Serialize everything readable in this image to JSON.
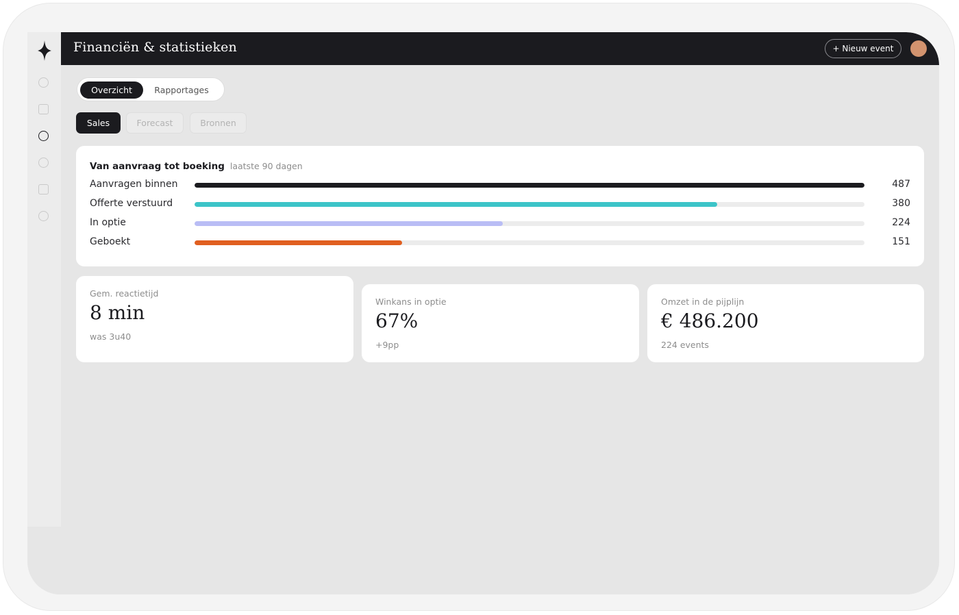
{
  "header": {
    "title": "Financiën & statistieken",
    "new_event_label": "+ Nieuw event"
  },
  "sidebar": {
    "items": [
      {
        "icon": "circle-icon",
        "active": false
      },
      {
        "icon": "square-icon",
        "active": false
      },
      {
        "icon": "circle-icon",
        "active": true
      },
      {
        "icon": "circle-icon",
        "active": false
      },
      {
        "icon": "square-icon",
        "active": false
      },
      {
        "icon": "circle-icon",
        "active": false
      }
    ]
  },
  "tabs": {
    "primary": [
      "Overzicht",
      "Rapportages"
    ],
    "primary_selected": "Overzicht",
    "secondary": [
      "Sales",
      "Forecast",
      "Bronnen"
    ],
    "secondary_selected": "Sales"
  },
  "funnel": {
    "title": "Van aanvraag tot boeking",
    "subtitle": "laatste 90 dagen",
    "rows": [
      {
        "label": "Aanvragen binnen",
        "value": 487,
        "color": "#1b1b1f"
      },
      {
        "label": "Offerte verstuurd",
        "value": 380,
        "color": "#3cc4c8"
      },
      {
        "label": "In optie",
        "value": 224,
        "color": "#b9bdf5"
      },
      {
        "label": "Geboekt",
        "value": 151,
        "color": "#e05f20"
      }
    ]
  },
  "kpis": [
    {
      "label": "Gem. reactietijd",
      "value": "8 min",
      "sub": "was 3u40"
    },
    {
      "label": "Winkans in optie",
      "value": "67%",
      "sub": "+9pp"
    },
    {
      "label": "Omzet in de pijplijn",
      "value": "€ 486.200",
      "sub": "224 events"
    }
  ],
  "colors": {
    "accent_dark": "#1b1b1f",
    "avatar": "#d2936f",
    "background": "#e6e6e6"
  }
}
